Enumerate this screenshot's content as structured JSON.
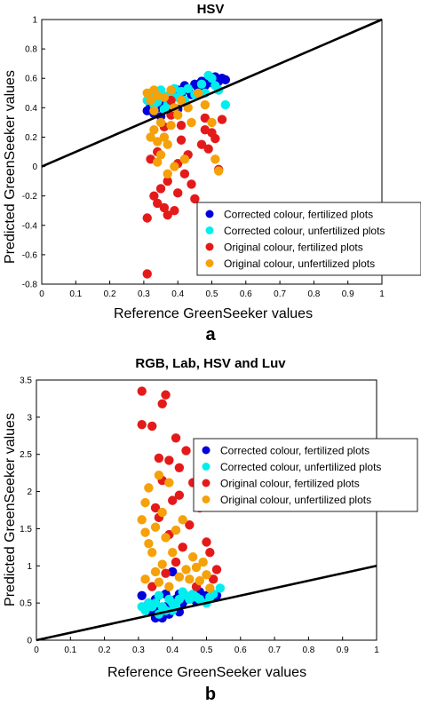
{
  "chart_data": [
    {
      "type": "scatter",
      "title": "HSV",
      "panel_label": "a",
      "xlabel": "Reference GreenSeeker values",
      "ylabel": "Predicted GreenSeeker values",
      "xlim": [
        0,
        1
      ],
      "ylim": [
        -0.8,
        1
      ],
      "x_ticks": [
        "0",
        "0.1",
        "0.2",
        "0.3",
        "0.4",
        "0.5",
        "0.6",
        "0.7",
        "0.8",
        "0.9",
        "1"
      ],
      "y_ticks": [
        "-0.8",
        "-0.6",
        "-0.4",
        "-0.2",
        "0",
        "0.2",
        "0.4",
        "0.6",
        "0.8",
        "1"
      ],
      "y_tick_values": [
        -0.8,
        -0.6,
        -0.4,
        -0.2,
        0,
        0.2,
        0.4,
        0.6,
        0.8,
        1
      ],
      "grid": false,
      "legend_position": "bottom-right",
      "line": {
        "x": [
          0,
          1
        ],
        "y": [
          0,
          1
        ]
      },
      "series": [
        {
          "name": "Corrected colour, fertilized plots",
          "color": "#0000dd",
          "points": [
            [
              0.31,
              0.38
            ],
            [
              0.32,
              0.41
            ],
            [
              0.33,
              0.36
            ],
            [
              0.34,
              0.4
            ],
            [
              0.35,
              0.34
            ],
            [
              0.36,
              0.43
            ],
            [
              0.37,
              0.45
            ],
            [
              0.38,
              0.41
            ],
            [
              0.39,
              0.5
            ],
            [
              0.4,
              0.52
            ],
            [
              0.41,
              0.48
            ],
            [
              0.42,
              0.55
            ],
            [
              0.43,
              0.52
            ],
            [
              0.44,
              0.49
            ],
            [
              0.45,
              0.56
            ],
            [
              0.46,
              0.53
            ],
            [
              0.47,
              0.58
            ],
            [
              0.48,
              0.55
            ],
            [
              0.49,
              0.6
            ],
            [
              0.5,
              0.57
            ],
            [
              0.51,
              0.61
            ],
            [
              0.52,
              0.58
            ],
            [
              0.53,
              0.6
            ],
            [
              0.54,
              0.59
            ],
            [
              0.35,
              0.46
            ],
            [
              0.4,
              0.39
            ]
          ]
        },
        {
          "name": "Corrected colour, unfertilized plots",
          "color": "#00eeee",
          "points": [
            [
              0.31,
              0.45
            ],
            [
              0.32,
              0.5
            ],
            [
              0.33,
              0.47
            ],
            [
              0.34,
              0.44
            ],
            [
              0.35,
              0.52
            ],
            [
              0.36,
              0.48
            ],
            [
              0.37,
              0.42
            ],
            [
              0.38,
              0.5
            ],
            [
              0.39,
              0.53
            ],
            [
              0.4,
              0.47
            ],
            [
              0.41,
              0.51
            ],
            [
              0.42,
              0.45
            ],
            [
              0.43,
              0.53
            ],
            [
              0.45,
              0.49
            ],
            [
              0.47,
              0.56
            ],
            [
              0.48,
              0.5
            ],
            [
              0.49,
              0.62
            ],
            [
              0.5,
              0.6
            ],
            [
              0.51,
              0.55
            ],
            [
              0.52,
              0.52
            ],
            [
              0.54,
              0.42
            ],
            [
              0.33,
              0.42
            ],
            [
              0.36,
              0.39
            ]
          ]
        },
        {
          "name": "Original colour, fertilized plots",
          "color": "#e41a1a",
          "points": [
            [
              0.31,
              -0.73
            ],
            [
              0.31,
              -0.35
            ],
            [
              0.32,
              0.05
            ],
            [
              0.33,
              -0.2
            ],
            [
              0.34,
              -0.25
            ],
            [
              0.35,
              -0.15
            ],
            [
              0.34,
              0.1
            ],
            [
              0.36,
              -0.28
            ],
            [
              0.36,
              0.27
            ],
            [
              0.37,
              -0.33
            ],
            [
              0.37,
              -0.1
            ],
            [
              0.38,
              0.35
            ],
            [
              0.38,
              0.45
            ],
            [
              0.39,
              -0.3
            ],
            [
              0.4,
              -0.18
            ],
            [
              0.4,
              0.02
            ],
            [
              0.41,
              0.18
            ],
            [
              0.42,
              -0.05
            ],
            [
              0.43,
              0.08
            ],
            [
              0.44,
              -0.12
            ],
            [
              0.45,
              -0.22
            ],
            [
              0.47,
              0.15
            ],
            [
              0.48,
              0.25
            ],
            [
              0.49,
              0.12
            ],
            [
              0.5,
              0.23
            ],
            [
              0.51,
              0.19
            ],
            [
              0.52,
              -0.02
            ],
            [
              0.53,
              0.32
            ],
            [
              0.48,
              0.33
            ],
            [
              0.41,
              0.28
            ]
          ]
        },
        {
          "name": "Original colour, unfertilized plots",
          "color": "#f5a10a",
          "points": [
            [
              0.31,
              0.5
            ],
            [
              0.32,
              0.2
            ],
            [
              0.32,
              0.45
            ],
            [
              0.33,
              0.38
            ],
            [
              0.33,
              0.25
            ],
            [
              0.34,
              0.17
            ],
            [
              0.34,
              0.48
            ],
            [
              0.35,
              0.3
            ],
            [
              0.35,
              0.08
            ],
            [
              0.36,
              0.2
            ],
            [
              0.36,
              0.47
            ],
            [
              0.37,
              0.15
            ],
            [
              0.37,
              -0.05
            ],
            [
              0.38,
              0.28
            ],
            [
              0.38,
              0.52
            ],
            [
              0.39,
              0.0
            ],
            [
              0.39,
              0.4
            ],
            [
              0.4,
              0.35
            ],
            [
              0.41,
              0.45
            ],
            [
              0.42,
              0.05
            ],
            [
              0.43,
              0.4
            ],
            [
              0.44,
              0.3
            ],
            [
              0.46,
              0.5
            ],
            [
              0.48,
              0.42
            ],
            [
              0.5,
              0.3
            ],
            [
              0.51,
              0.05
            ],
            [
              0.52,
              -0.03
            ],
            [
              0.34,
              0.03
            ],
            [
              0.33,
              0.52
            ]
          ]
        }
      ]
    },
    {
      "type": "scatter",
      "title": "RGB, Lab, HSV and Luv",
      "panel_label": "b",
      "xlabel": "Reference GreenSeeker values",
      "ylabel": "Predicted GreenSeeker values",
      "xlim": [
        0,
        1
      ],
      "ylim": [
        0,
        3.5
      ],
      "x_ticks": [
        "0",
        "0.1",
        "0.2",
        "0.3",
        "0.4",
        "0.5",
        "0.6",
        "0.7",
        "0.8",
        "0.9",
        "1"
      ],
      "y_ticks": [
        "0",
        "0.5",
        "1",
        "1.5",
        "2",
        "2.5",
        "3",
        "3.5"
      ],
      "y_tick_values": [
        0,
        0.5,
        1,
        1.5,
        2,
        2.5,
        3,
        3.5
      ],
      "grid": false,
      "legend_position": "right",
      "line": {
        "x": [
          0,
          1
        ],
        "y": [
          0,
          1
        ]
      },
      "series": [
        {
          "name": "Corrected colour, fertilized plots",
          "color": "#0000dd",
          "points": [
            [
              0.31,
              0.6
            ],
            [
              0.32,
              0.45
            ],
            [
              0.33,
              0.5
            ],
            [
              0.34,
              0.38
            ],
            [
              0.35,
              0.55
            ],
            [
              0.36,
              0.42
            ],
            [
              0.37,
              0.3
            ],
            [
              0.38,
              0.45
            ],
            [
              0.39,
              0.35
            ],
            [
              0.4,
              0.92
            ],
            [
              0.41,
              0.55
            ],
            [
              0.42,
              0.62
            ],
            [
              0.43,
              0.5
            ],
            [
              0.45,
              0.58
            ],
            [
              0.47,
              0.52
            ],
            [
              0.48,
              0.65
            ],
            [
              0.49,
              0.55
            ],
            [
              0.5,
              0.6
            ],
            [
              0.52,
              0.58
            ],
            [
              0.53,
              0.6
            ],
            [
              0.35,
              0.3
            ],
            [
              0.38,
              0.62
            ],
            [
              0.42,
              0.38
            ]
          ]
        },
        {
          "name": "Corrected colour, unfertilized plots",
          "color": "#00eeee",
          "points": [
            [
              0.31,
              0.45
            ],
            [
              0.32,
              0.4
            ],
            [
              0.33,
              0.5
            ],
            [
              0.34,
              0.45
            ],
            [
              0.35,
              0.5
            ],
            [
              0.36,
              0.6
            ],
            [
              0.37,
              0.45
            ],
            [
              0.38,
              0.4
            ],
            [
              0.39,
              0.55
            ],
            [
              0.4,
              0.5
            ],
            [
              0.41,
              0.48
            ],
            [
              0.42,
              0.55
            ],
            [
              0.43,
              0.65
            ],
            [
              0.44,
              0.6
            ],
            [
              0.45,
              0.55
            ],
            [
              0.46,
              0.62
            ],
            [
              0.47,
              0.58
            ],
            [
              0.48,
              0.55
            ],
            [
              0.5,
              0.5
            ],
            [
              0.51,
              0.58
            ],
            [
              0.52,
              0.62
            ],
            [
              0.54,
              0.7
            ],
            [
              0.36,
              0.35
            ],
            [
              0.4,
              0.4
            ]
          ]
        },
        {
          "name": "Original colour, fertilized plots",
          "color": "#e41a1a",
          "points": [
            [
              0.31,
              3.35
            ],
            [
              0.31,
              2.9
            ],
            [
              0.34,
              2.88
            ],
            [
              0.36,
              2.45
            ],
            [
              0.37,
              3.18
            ],
            [
              0.38,
              3.3
            ],
            [
              0.39,
              2.42
            ],
            [
              0.4,
              1.88
            ],
            [
              0.41,
              2.72
            ],
            [
              0.42,
              1.95
            ],
            [
              0.44,
              2.55
            ],
            [
              0.46,
              2.12
            ],
            [
              0.48,
              1.78
            ],
            [
              0.37,
              2.15
            ],
            [
              0.39,
              1.42
            ],
            [
              0.41,
              1.05
            ],
            [
              0.36,
              1.65
            ],
            [
              0.43,
              1.25
            ],
            [
              0.45,
              1.55
            ],
            [
              0.5,
              1.32
            ],
            [
              0.52,
              0.82
            ],
            [
              0.53,
              0.95
            ],
            [
              0.38,
              0.9
            ],
            [
              0.47,
              0.72
            ],
            [
              0.51,
              1.18
            ],
            [
              0.35,
              1.78
            ],
            [
              0.42,
              2.32
            ],
            [
              0.34,
              0.72
            ]
          ]
        },
        {
          "name": "Original colour, unfertilized plots",
          "color": "#f5a10a",
          "points": [
            [
              0.31,
              1.62
            ],
            [
              0.32,
              1.45
            ],
            [
              0.33,
              1.3
            ],
            [
              0.32,
              1.85
            ],
            [
              0.33,
              2.05
            ],
            [
              0.35,
              1.52
            ],
            [
              0.34,
              1.18
            ],
            [
              0.35,
              0.92
            ],
            [
              0.36,
              2.22
            ],
            [
              0.37,
              1.72
            ],
            [
              0.37,
              1.02
            ],
            [
              0.38,
              1.38
            ],
            [
              0.39,
              2.12
            ],
            [
              0.4,
              1.18
            ],
            [
              0.41,
              1.48
            ],
            [
              0.42,
              0.85
            ],
            [
              0.43,
              1.62
            ],
            [
              0.44,
              0.95
            ],
            [
              0.45,
              0.82
            ],
            [
              0.46,
              1.12
            ],
            [
              0.47,
              0.98
            ],
            [
              0.48,
              0.8
            ],
            [
              0.49,
              1.05
            ],
            [
              0.5,
              0.88
            ],
            [
              0.51,
              0.7
            ],
            [
              0.32,
              0.82
            ],
            [
              0.36,
              0.78
            ],
            [
              0.39,
              0.72
            ]
          ]
        }
      ]
    }
  ]
}
